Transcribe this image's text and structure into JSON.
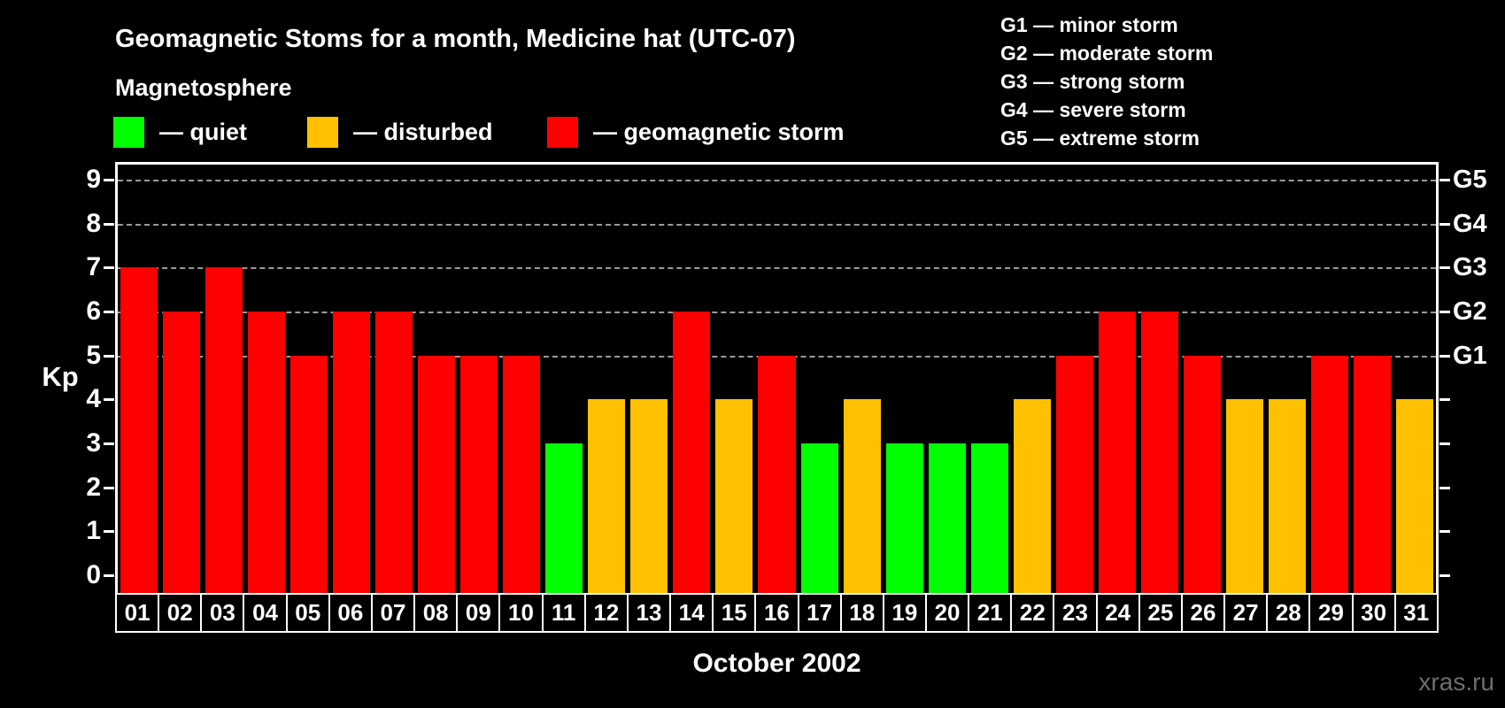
{
  "title": "Geomagnetic Stoms for a month, Medicine hat (UTC-07)",
  "watermark": "xras.ru",
  "legend": {
    "heading": "Magnetosphere",
    "items": [
      {
        "key": "quiet",
        "label": "— quiet",
        "color": "#00ff00"
      },
      {
        "key": "disturbed",
        "label": "— disturbed",
        "color": "#ffc000"
      },
      {
        "key": "storm",
        "label": "— geomagnetic storm",
        "color": "#ff0000"
      }
    ]
  },
  "g_scale_legend": [
    "G1 — minor storm",
    "G2 — moderate storm",
    "G3 — strong storm",
    "G4 — severe storm",
    "G5 — extreme storm"
  ],
  "chart_data": {
    "type": "bar",
    "title": "Geomagnetic Stoms for a month, Medicine hat (UTC-07)",
    "xlabel": "October 2002",
    "ylabel": "Kp",
    "ylim": [
      0,
      9
    ],
    "yticks": [
      0,
      1,
      2,
      3,
      4,
      5,
      6,
      7,
      8,
      9
    ],
    "grid": "dashed horizontal lines at Kp 5-9 only",
    "gridlines_at": [
      5,
      6,
      7,
      8,
      9
    ],
    "right_axis_labels": [
      {
        "label": "G1",
        "kp": 5
      },
      {
        "label": "G2",
        "kp": 6
      },
      {
        "label": "G3",
        "kp": 7
      },
      {
        "label": "G4",
        "kp": 8
      },
      {
        "label": "G5",
        "kp": 9
      }
    ],
    "categories": [
      "01",
      "02",
      "03",
      "04",
      "05",
      "06",
      "07",
      "08",
      "09",
      "10",
      "11",
      "12",
      "13",
      "14",
      "15",
      "16",
      "17",
      "18",
      "19",
      "20",
      "21",
      "22",
      "23",
      "24",
      "25",
      "26",
      "27",
      "28",
      "29",
      "30",
      "31"
    ],
    "values": [
      7,
      6,
      7,
      6,
      5,
      6,
      6,
      5,
      5,
      5,
      3,
      4,
      4,
      6,
      4,
      5,
      3,
      4,
      3,
      3,
      3,
      4,
      5,
      6,
      6,
      5,
      4,
      4,
      5,
      5,
      4
    ],
    "statuses": [
      "storm",
      "storm",
      "storm",
      "storm",
      "storm",
      "storm",
      "storm",
      "storm",
      "storm",
      "storm",
      "quiet",
      "disturbed",
      "disturbed",
      "storm",
      "disturbed",
      "storm",
      "quiet",
      "disturbed",
      "quiet",
      "quiet",
      "quiet",
      "disturbed",
      "storm",
      "storm",
      "storm",
      "storm",
      "disturbed",
      "disturbed",
      "storm",
      "storm",
      "disturbed"
    ],
    "colors": {
      "quiet": "#00ff00",
      "disturbed": "#ffc000",
      "storm": "#ff0000"
    },
    "background": "#000000",
    "axis_color": "#ffffff",
    "gridline_color": "#9a9a9a",
    "legend_position": "top"
  }
}
